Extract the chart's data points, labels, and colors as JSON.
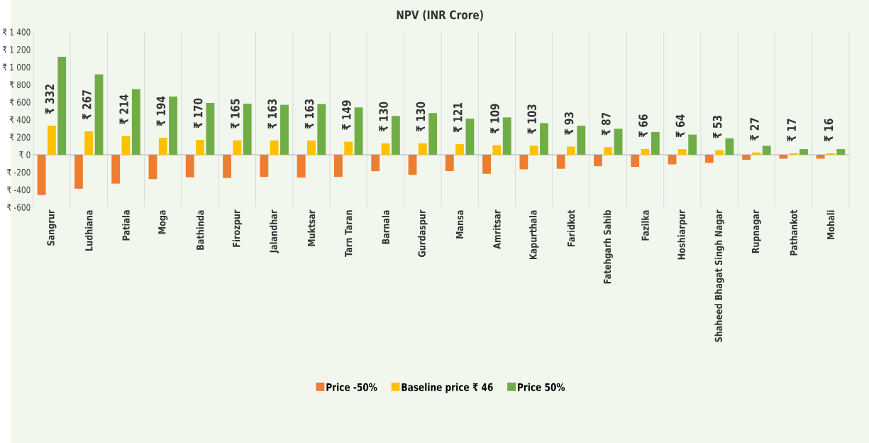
{
  "chart_data": {
    "type": "bar",
    "title": "NPV (INR Crore)",
    "categories": [
      "Sangrur",
      "Ludhiana",
      "Patiala",
      "Moga",
      "Bathinda",
      "Firozpur",
      "Jalandhar",
      "Muktsar",
      "Tarn Taran",
      "Barnala",
      "Gurdaspur",
      "Mansa",
      "Amritsar",
      "Kapurthala",
      "Faridkot",
      "Fatehgarh Sahib",
      "Fazilka",
      "Hoshiarpur",
      "Shaheed Bhagat Singh Nagar",
      "Rupnagar",
      "Pathankot",
      "Mohali"
    ],
    "series": [
      {
        "name": "Price -50%",
        "color": "#ed7d31",
        "values": [
          -460,
          -388,
          -329,
          -278,
          -257,
          -265,
          -252,
          -260,
          -252,
          -187,
          -230,
          -187,
          -217,
          -166,
          -160,
          -131,
          -139,
          -110,
          -94,
          -59,
          -45,
          -45
        ]
      },
      {
        "name": "Baseline price ₹ 46",
        "color": "#ffc000",
        "values": [
          332,
          267,
          214,
          194,
          170,
          165,
          163,
          163,
          149,
          130,
          130,
          121,
          109,
          103,
          93,
          87,
          66,
          64,
          53,
          27,
          17,
          16
        ],
        "value_labels": [
          "₹ 332",
          "₹ 267",
          "₹ 214",
          "₹ 194",
          "₹ 170",
          "₹ 165",
          "₹ 163",
          "₹ 163",
          "₹ 149",
          "₹ 130",
          "₹ 130",
          "₹ 121",
          "₹ 109",
          "₹ 103",
          "₹ 93",
          "₹ 87",
          "₹ 66",
          "₹ 64",
          "₹ 53",
          "₹ 27",
          "₹ 17",
          "₹ 16"
        ]
      },
      {
        "name": "Price 50%",
        "color": "#70ad47",
        "values": [
          1118,
          918,
          750,
          664,
          592,
          584,
          570,
          578,
          541,
          442,
          476,
          412,
          426,
          361,
          332,
          297,
          260,
          230,
          187,
          102,
          64,
          64
        ]
      }
    ],
    "ylim": [
      -600,
      1400
    ],
    "yticks": [
      {
        "value": -600,
        "label": "₹ -600"
      },
      {
        "value": -400,
        "label": "₹ -400"
      },
      {
        "value": -200,
        "label": "₹ -200"
      },
      {
        "value": 0,
        "label": "₹ 0"
      },
      {
        "value": 200,
        "label": "₹ 200"
      },
      {
        "value": 400,
        "label": "₹ 400"
      },
      {
        "value": 600,
        "label": "₹ 600"
      },
      {
        "value": 800,
        "label": "₹ 800"
      },
      {
        "value": 1000,
        "label": "₹ 1 000"
      },
      {
        "value": 1200,
        "label": "₹ 1 200"
      },
      {
        "value": 1400,
        "label": "₹ 1 400"
      }
    ],
    "grid": "x",
    "legend": "bottom"
  }
}
